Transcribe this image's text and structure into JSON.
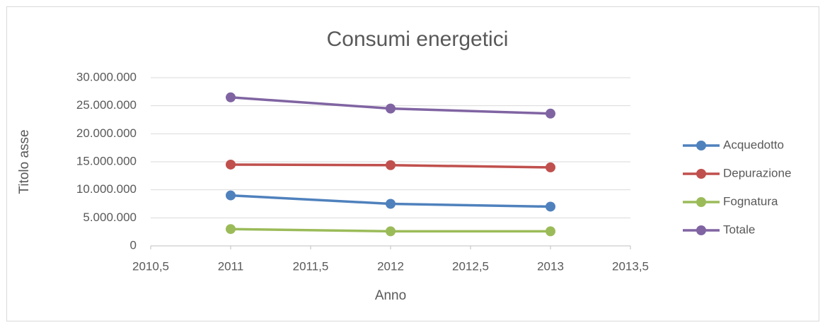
{
  "chart_data": {
    "type": "line",
    "title": "Consumi energetici",
    "x_label": "Anno",
    "y_label": "Titolo asse",
    "x": [
      2011,
      2012,
      2013
    ],
    "series": [
      {
        "name": "Acquedotto",
        "color": "#4f81bd",
        "values": [
          9000000,
          7500000,
          7000000
        ]
      },
      {
        "name": "Depurazione",
        "color": "#c0504d",
        "values": [
          14500000,
          14400000,
          14000000
        ]
      },
      {
        "name": "Fognatura",
        "color": "#9bbb59",
        "values": [
          3000000,
          2600000,
          2600000
        ]
      },
      {
        "name": "Totale",
        "color": "#8064a2",
        "values": [
          26500000,
          24500000,
          23600000
        ]
      }
    ],
    "xlim": [
      2010.5,
      2013.5
    ],
    "xticks": [
      {
        "value": 2010.5,
        "label": "2010,5"
      },
      2011,
      {
        "value": 2011.5,
        "label": "2011,5"
      },
      2012,
      {
        "value": 2012.5,
        "label": "2012,5"
      },
      2013,
      {
        "value": 2013.5,
        "label": "2013,5"
      }
    ],
    "ylim": [
      0,
      30000000
    ],
    "yticks": [
      0,
      {
        "value": 5000000,
        "label": "5.000.000"
      },
      {
        "value": 10000000,
        "label": "10.000.000"
      },
      {
        "value": 15000000,
        "label": "15.000.000"
      },
      {
        "value": 20000000,
        "label": "20.000.000"
      },
      {
        "value": 25000000,
        "label": "25.000.000"
      },
      {
        "value": 30000000,
        "label": "30.000.000"
      }
    ],
    "grid": true,
    "legend": "right"
  }
}
